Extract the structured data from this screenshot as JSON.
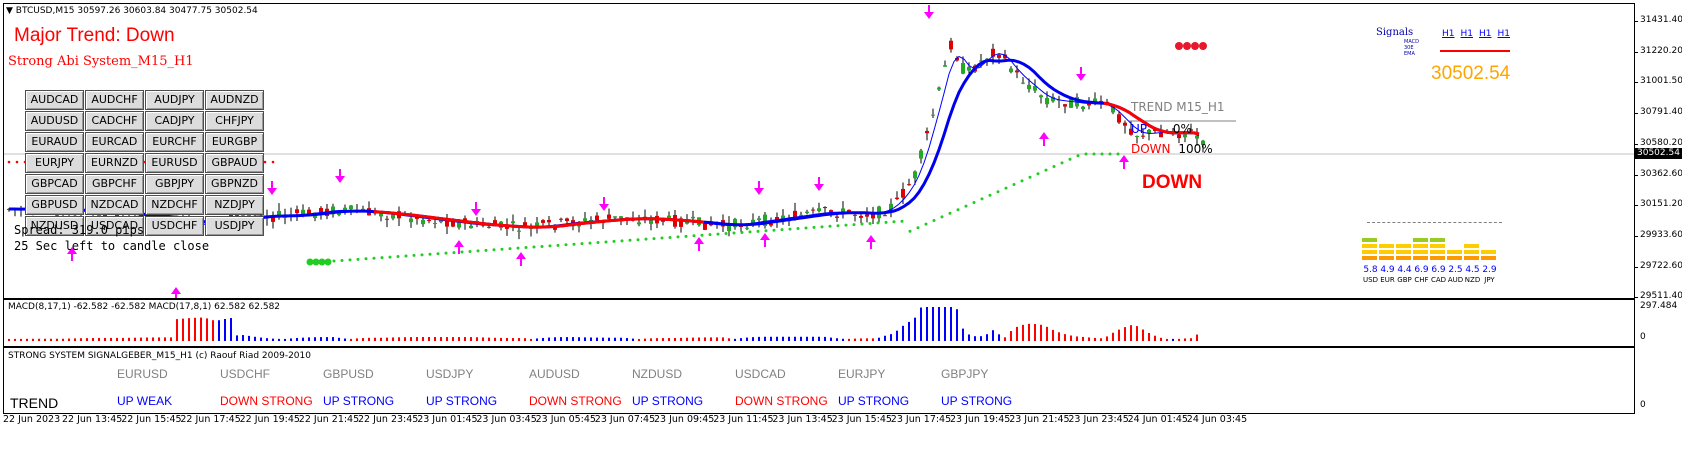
{
  "chart": {
    "symbol_line": "BTCUSD,M15  30597.26 30603.84 30477.75 30502.54",
    "major_trend": "Major Trend: Down",
    "system_name": "Strong Abi System_M15_H1",
    "spread": "Spread: 319.0 pips",
    "candle_timer": "25 Sec left to candle close",
    "trend_label": "TREND M15_H1",
    "up_label": "UP",
    "up_pct": "0%",
    "down_label": "DOWN",
    "down_pct": "100%",
    "big_down": "DOWN",
    "signals_title": "Signals",
    "signals_timeframes": [
      "H1",
      "H1",
      "H1",
      "H1"
    ],
    "signals_indicators": [
      "MACD",
      "30E",
      "EMA"
    ],
    "current_price_big": "30502.54",
    "price_marker": "30502.54",
    "price_scale": [
      "31431.40",
      "31220.20",
      "31001.50",
      "30791.40",
      "30580.20",
      "30362.60",
      "30151.20",
      "29933.60",
      "29722.60",
      "29511.40"
    ],
    "currency_strength": [
      {
        "code": "USD",
        "value": "5.8"
      },
      {
        "code": "EUR",
        "value": "4.9"
      },
      {
        "code": "GBP",
        "value": "4.4"
      },
      {
        "code": "CHF",
        "value": "6.9"
      },
      {
        "code": "CAD",
        "value": "6.9"
      },
      {
        "code": "AUD",
        "value": "2.5"
      },
      {
        "code": "NZD",
        "value": "4.5"
      },
      {
        "code": "JPY",
        "value": "2.9"
      }
    ],
    "symbol_buttons": [
      "AUDCAD",
      "AUDCHF",
      "AUDJPY",
      "AUDNZD",
      "AUDUSD",
      "CADCHF",
      "CADJPY",
      "CHFJPY",
      "EURAUD",
      "EURCAD",
      "EURCHF",
      "EURGBP",
      "EURJPY",
      "EURNZD",
      "EURUSD",
      "GBPAUD",
      "GBPCAD",
      "GBPCHF",
      "GBPJPY",
      "GBPNZD",
      "GBPUSD",
      "NZDCAD",
      "NZDCHF",
      "NZDJPY",
      "NZDUSD",
      "USDCAD",
      "USDCHF",
      "USDJPY"
    ]
  },
  "macd_pane": {
    "label": "MACD(8,17,1) -62.582 -62.582  MACD(17,8,1) 62.582 62.582",
    "scale_top": "297.484",
    "scale_zero": "0"
  },
  "signal_pane": {
    "title": "STRONG SYSTEM SIGNALGEBER_M15_H1 (c) Raouf Riad 2009-2010",
    "trend_label": "TREND",
    "scale_zero": "0",
    "pairs": [
      {
        "name": "EURUSD",
        "signal": "UP WEAK",
        "color": "#0000ff"
      },
      {
        "name": "USDCHF",
        "signal": "DOWN STRONG",
        "color": "#ff0000"
      },
      {
        "name": "GBPUSD",
        "signal": "UP STRONG",
        "color": "#0000ff"
      },
      {
        "name": "USDJPY",
        "signal": "UP STRONG",
        "color": "#0000ff"
      },
      {
        "name": "AUDUSD",
        "signal": "DOWN STRONG",
        "color": "#ff0000"
      },
      {
        "name": "NZDUSD",
        "signal": "UP STRONG",
        "color": "#0000ff"
      },
      {
        "name": "USDCAD",
        "signal": "DOWN STRONG",
        "color": "#ff0000"
      },
      {
        "name": "EURJPY",
        "signal": "UP STRONG",
        "color": "#0000ff"
      },
      {
        "name": "GBPJPY",
        "signal": "UP STRONG",
        "color": "#0000ff"
      }
    ]
  },
  "time_axis": [
    "22 Jun 2023",
    "22 Jun 13:45",
    "22 Jun 15:45",
    "22 Jun 17:45",
    "22 Jun 19:45",
    "22 Jun 21:45",
    "22 Jun 23:45",
    "23 Jun 01:45",
    "23 Jun 03:45",
    "23 Jun 05:45",
    "23 Jun 07:45",
    "23 Jun 09:45",
    "23 Jun 11:45",
    "23 Jun 13:45",
    "23 Jun 15:45",
    "23 Jun 17:45",
    "23 Jun 19:45",
    "23 Jun 21:45",
    "23 Jun 23:45",
    "24 Jun 01:45",
    "24 Jun 03:45"
  ],
  "colors": {
    "bull_candle": "#22aa22",
    "bear_candle": "#e00000",
    "ma_fast": "#0000ff",
    "ma_slow_up": "#0000ee",
    "ma_slow_down": "#ff0000",
    "arrow": "#ff00ff",
    "dots": "#22cc22",
    "up": "#0000ff",
    "down": "#ff0000",
    "label_gray": "#808080",
    "strength_high": "#99cc22",
    "strength_mid": "#ffcc00",
    "strength_low": "#ff9900"
  }
}
